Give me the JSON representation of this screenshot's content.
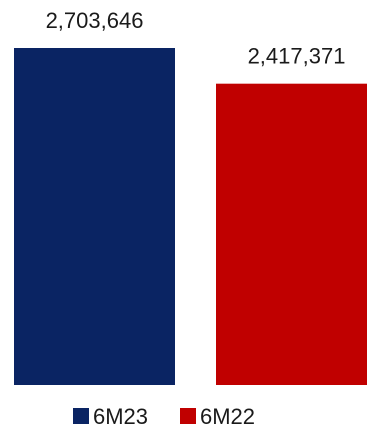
{
  "chart_data": {
    "type": "bar",
    "categories": [
      "6M23",
      "6M22"
    ],
    "values": [
      2703646,
      2417371
    ],
    "data_labels": [
      "2,703,646",
      "2,417,371"
    ],
    "colors": [
      "#0a2463",
      "#c00000"
    ],
    "ylim": [
      0,
      2900000
    ],
    "grid": false,
    "legend": {
      "position": "bottom",
      "entries": [
        {
          "label": "6M23",
          "color": "#0a2463"
        },
        {
          "label": "6M22",
          "color": "#c00000"
        }
      ]
    }
  }
}
